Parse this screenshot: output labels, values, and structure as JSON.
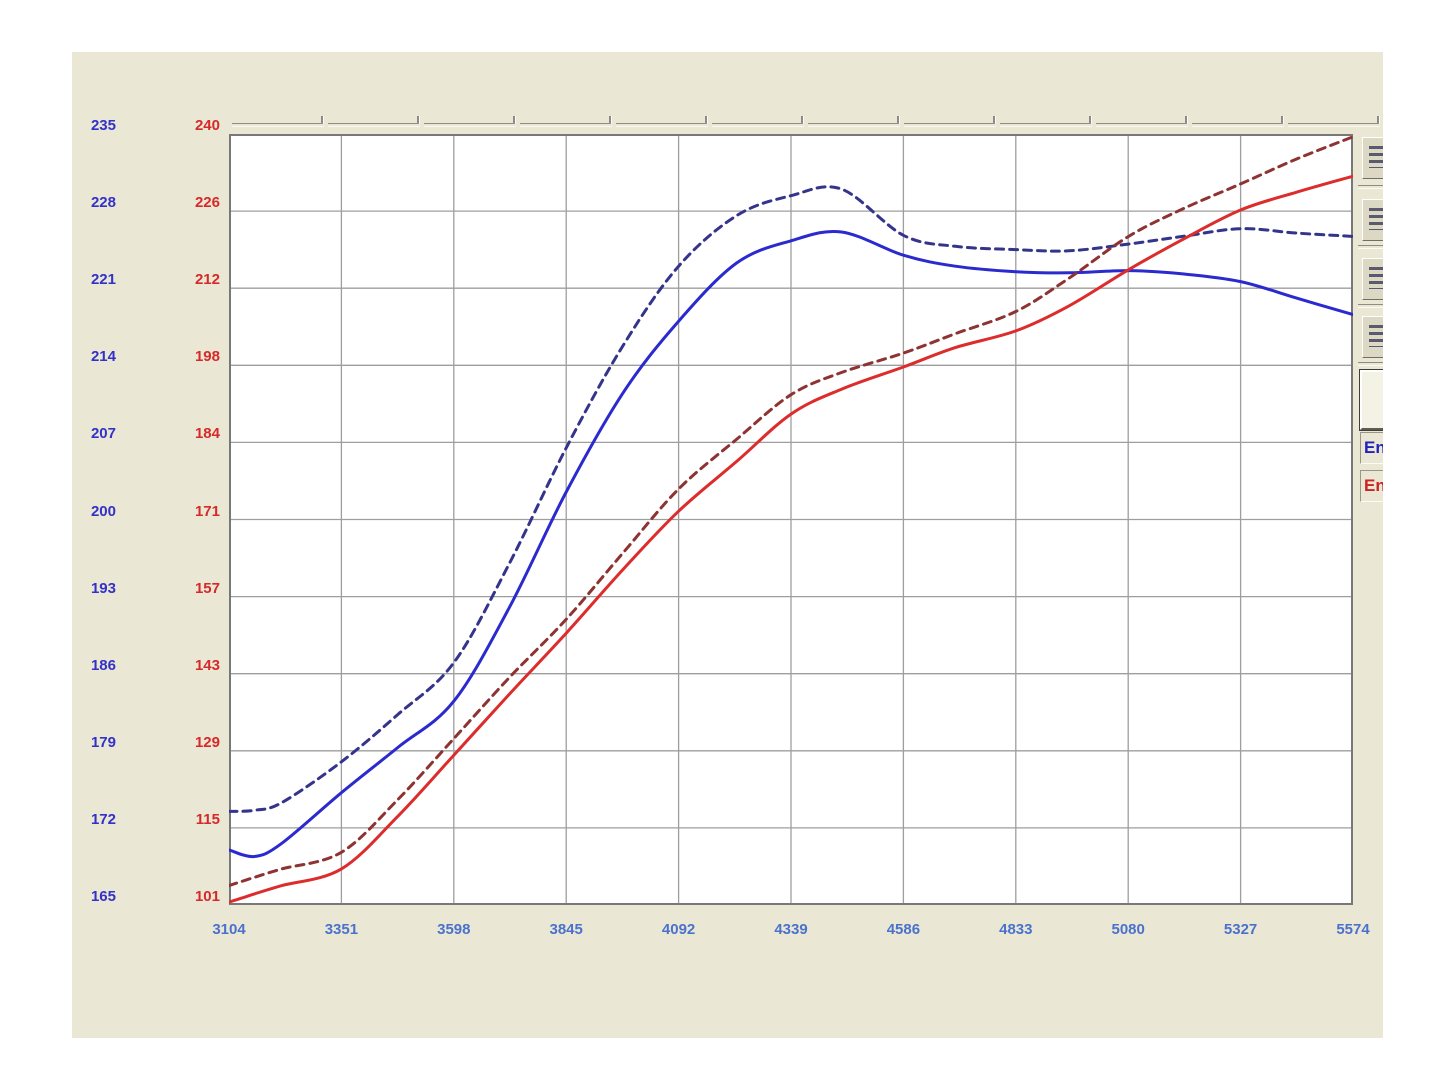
{
  "window": {
    "name": "dyno-graph-window"
  },
  "chart_data": {
    "type": "line",
    "title": "",
    "xlabel": "",
    "ylabel_left": "",
    "ylabel_right": "",
    "grid": true,
    "legend_position": "none",
    "x_axis": {
      "min": 3104,
      "max": 5574,
      "ticks": [
        3104,
        3351,
        3598,
        3845,
        4092,
        4339,
        4586,
        4833,
        5080,
        5327,
        5574
      ],
      "tick_color": "#4a72cc"
    },
    "y_axis_left": {
      "min": 165,
      "max": 235,
      "ticks": [
        235,
        228,
        221,
        214,
        207,
        200,
        193,
        186,
        179,
        172,
        165
      ],
      "tick_color": "#3232c8"
    },
    "y_axis_right": {
      "min": 101,
      "max": 240,
      "ticks": [
        240,
        226,
        212,
        198,
        184,
        171,
        157,
        143,
        129,
        115,
        101
      ],
      "tick_color": "#d42a2a"
    },
    "rpm_points": [
      3104,
      3160,
      3220,
      3351,
      3475,
      3598,
      3720,
      3845,
      3970,
      4092,
      4220,
      4339,
      4450,
      4586,
      4700,
      4833,
      4950,
      5080,
      5200,
      5327,
      5450,
      5574
    ],
    "series": [
      {
        "name": "blue-dashed-run",
        "axis": "left",
        "style": "dashed",
        "color": "#34348c",
        "values": [
          173.5,
          173.6,
          174.3,
          178.0,
          182.3,
          187.0,
          196.0,
          206.5,
          215.8,
          223.0,
          227.6,
          229.4,
          230.0,
          225.8,
          224.8,
          224.5,
          224.4,
          225.0,
          225.7,
          226.4,
          226.0,
          225.7
        ]
      },
      {
        "name": "blue-solid-run",
        "axis": "left",
        "style": "solid",
        "color": "#2a2ace",
        "values": [
          170.0,
          169.4,
          170.6,
          175.2,
          179.3,
          183.5,
          192.0,
          202.5,
          211.5,
          218.0,
          223.3,
          225.3,
          226.1,
          224.0,
          223.0,
          222.5,
          222.4,
          222.6,
          222.3,
          221.6,
          220.1,
          218.6
        ]
      },
      {
        "name": "red-dashed-run",
        "axis": "right",
        "style": "dashed",
        "color": "#8e3232",
        "values": [
          104.5,
          106.0,
          107.5,
          110.5,
          120.0,
          131.0,
          142.0,
          152.5,
          164.5,
          176.0,
          185.0,
          193.0,
          197.0,
          200.5,
          204.0,
          208.0,
          214.0,
          221.5,
          226.5,
          231.0,
          235.5,
          239.5
        ]
      },
      {
        "name": "red-solid-run",
        "axis": "right",
        "style": "solid",
        "color": "#dc2c2c",
        "values": [
          101.5,
          103.0,
          104.5,
          107.5,
          117.0,
          128.0,
          139.0,
          150.0,
          161.5,
          172.0,
          181.0,
          189.5,
          194.0,
          198.0,
          201.5,
          204.5,
          209.0,
          215.5,
          221.0,
          226.3,
          229.5,
          232.4
        ]
      }
    ],
    "gridline_color": "#9e9e9e",
    "border_color": "#787878",
    "plot_background": "#ffffff"
  },
  "right_panel": {
    "buttons": [
      {
        "label": "",
        "icon": "graph-option-icon"
      },
      {
        "label": "",
        "icon": "graph-option-icon"
      },
      {
        "label": "",
        "icon": "graph-option-icon"
      },
      {
        "label": "",
        "icon": "graph-option-icon"
      }
    ],
    "big_button_label": "",
    "fields": [
      {
        "label": "En",
        "color": "#2222bb"
      },
      {
        "label": "En",
        "color": "#cc2222"
      }
    ]
  }
}
